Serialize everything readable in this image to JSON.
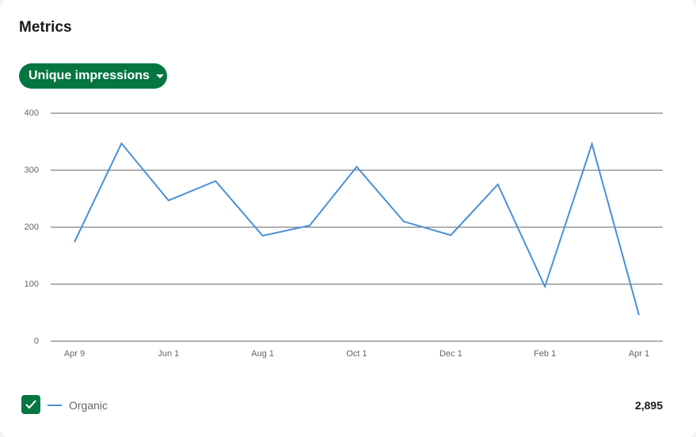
{
  "title": "Metrics",
  "dropdown": "Unique impressions",
  "total": "2,895",
  "chart_data": {
    "type": "line",
    "categories": [
      "Apr 9",
      null,
      "Jun 1",
      null,
      "Aug 1",
      null,
      "Oct 1",
      null,
      "Dec 1",
      null,
      "Feb 1",
      null,
      "Apr 1"
    ],
    "series": [
      {
        "name": "Organic",
        "color": "#4a90d6",
        "values": [
          174,
          347,
          247,
          281,
          185,
          203,
          306,
          210,
          186,
          275,
          96,
          346,
          46
        ]
      }
    ],
    "ylim": [
      0,
      400
    ],
    "yticks": [
      0,
      100,
      200,
      300,
      400
    ],
    "grid": true
  }
}
